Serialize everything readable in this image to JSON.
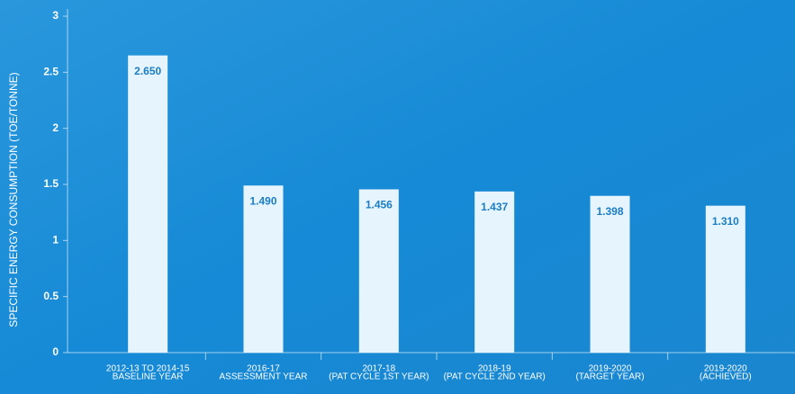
{
  "chart_data": {
    "type": "bar",
    "y_label": "SPECIFIC ENERGY CONSUMPTION (TOE/TONNE)",
    "categories": [
      [
        "2012-13 TO 2014-15",
        "BASELINE YEAR"
      ],
      [
        "2016-17",
        "ASSESSMENT YEAR"
      ],
      [
        "2017-18",
        "(PAT CYCLE 1ST YEAR)"
      ],
      [
        "2018-19",
        "(PAT CYCLE 2ND YEAR)"
      ],
      [
        "2019-2020",
        "(TARGET YEAR)"
      ],
      [
        "2019-2020",
        "(ACHIEVED)"
      ]
    ],
    "values": [
      2.65,
      1.49,
      1.456,
      1.437,
      1.398,
      1.31
    ],
    "value_labels": [
      "2.650",
      "1.490",
      "1.456",
      "1.437",
      "1.398",
      "1.310"
    ],
    "color": "#e6f4fd",
    "ylim": [
      0,
      3
    ],
    "yticks": [
      0,
      0.5,
      1,
      1.5,
      2,
      2.5,
      3
    ]
  }
}
